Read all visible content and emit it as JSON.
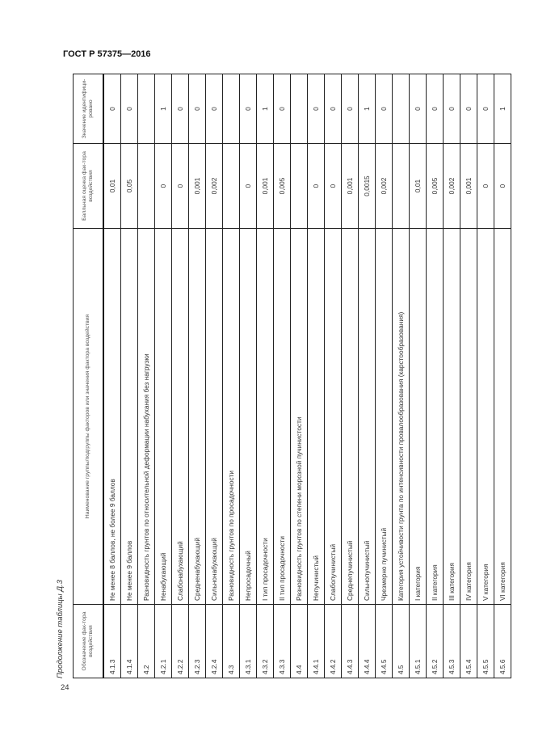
{
  "header": {
    "doc_title": "ГОСТ Р 57375—2016",
    "caption": "Продолжение таблицы Д.3",
    "page_number": "24"
  },
  "table": {
    "columns": [
      "Обозначение фак-тора воздействия",
      "Наименование группы/подгруппы факторов или значения фактора воздействия",
      "Балльная оценка фак-тора воздействия",
      "Значение идентифици-ровано"
    ],
    "rows": [
      {
        "code": "4.1.3",
        "name": "Не менее 8 баллов, не более 9 баллов",
        "score": "0,01",
        "value": "0"
      },
      {
        "code": "4.1.4",
        "name": "Не менее 9 баллов",
        "score": "0,05",
        "value": "0"
      },
      {
        "code": "4.2",
        "name": "Разновидность грунтов по относительной деформации набухания без нагрузки",
        "score": "",
        "value": ""
      },
      {
        "code": "4.2.1",
        "name": "Ненабухающий",
        "score": "0",
        "value": "1"
      },
      {
        "code": "4.2.2",
        "name": "Слабонабухающий",
        "score": "0",
        "value": "0"
      },
      {
        "code": "4.2.3",
        "name": "Средненабухающий",
        "score": "0,001",
        "value": "0"
      },
      {
        "code": "4.2.4",
        "name": "Сильнонабухающий",
        "score": "0,002",
        "value": "0"
      },
      {
        "code": "4.3",
        "name": "Разновидность грунтов по просадочности",
        "score": "",
        "value": ""
      },
      {
        "code": "4.3.1",
        "name": "Непросадочный",
        "score": "0",
        "value": "0"
      },
      {
        "code": "4.3.2",
        "name": "I тип просадочности",
        "score": "0,001",
        "value": "1"
      },
      {
        "code": "4.3.3",
        "name": "II тип просадочности",
        "score": "0,005",
        "value": "0"
      },
      {
        "code": "4.4",
        "name": "Разновидность грунтов по степени морозной пучинистости",
        "score": "",
        "value": ""
      },
      {
        "code": "4.4.1",
        "name": "Непучинистый",
        "score": "0",
        "value": "0"
      },
      {
        "code": "4.4.2",
        "name": "Слабопучинистый",
        "score": "0",
        "value": "0"
      },
      {
        "code": "4.4.3",
        "name": "Среднепучинистый",
        "score": "0,001",
        "value": "0"
      },
      {
        "code": "4.4.4",
        "name": "Сильнопучинистый",
        "score": "0,0015",
        "value": "1"
      },
      {
        "code": "4.4.5",
        "name": "Чрезмерно пучинистый",
        "score": "0,002",
        "value": "0"
      },
      {
        "code": "4.5",
        "name": "Категория устойчивости грунта по интенсивности провалообразования (карстообразования)",
        "score": "",
        "value": ""
      },
      {
        "code": "4.5.1",
        "name": "I категория",
        "score": "0,01",
        "value": "0"
      },
      {
        "code": "4.5.2",
        "name": "II категория",
        "score": "0,005",
        "value": "0"
      },
      {
        "code": "4.5.3",
        "name": "III категория",
        "score": "0,002",
        "value": "0"
      },
      {
        "code": "4.5.4",
        "name": "IV категория",
        "score": "0,001",
        "value": "0"
      },
      {
        "code": "4.5.5",
        "name": "V категория",
        "score": "0",
        "value": "0"
      },
      {
        "code": "4.5.6",
        "name": "VI категория",
        "score": "0",
        "value": "1"
      }
    ]
  }
}
